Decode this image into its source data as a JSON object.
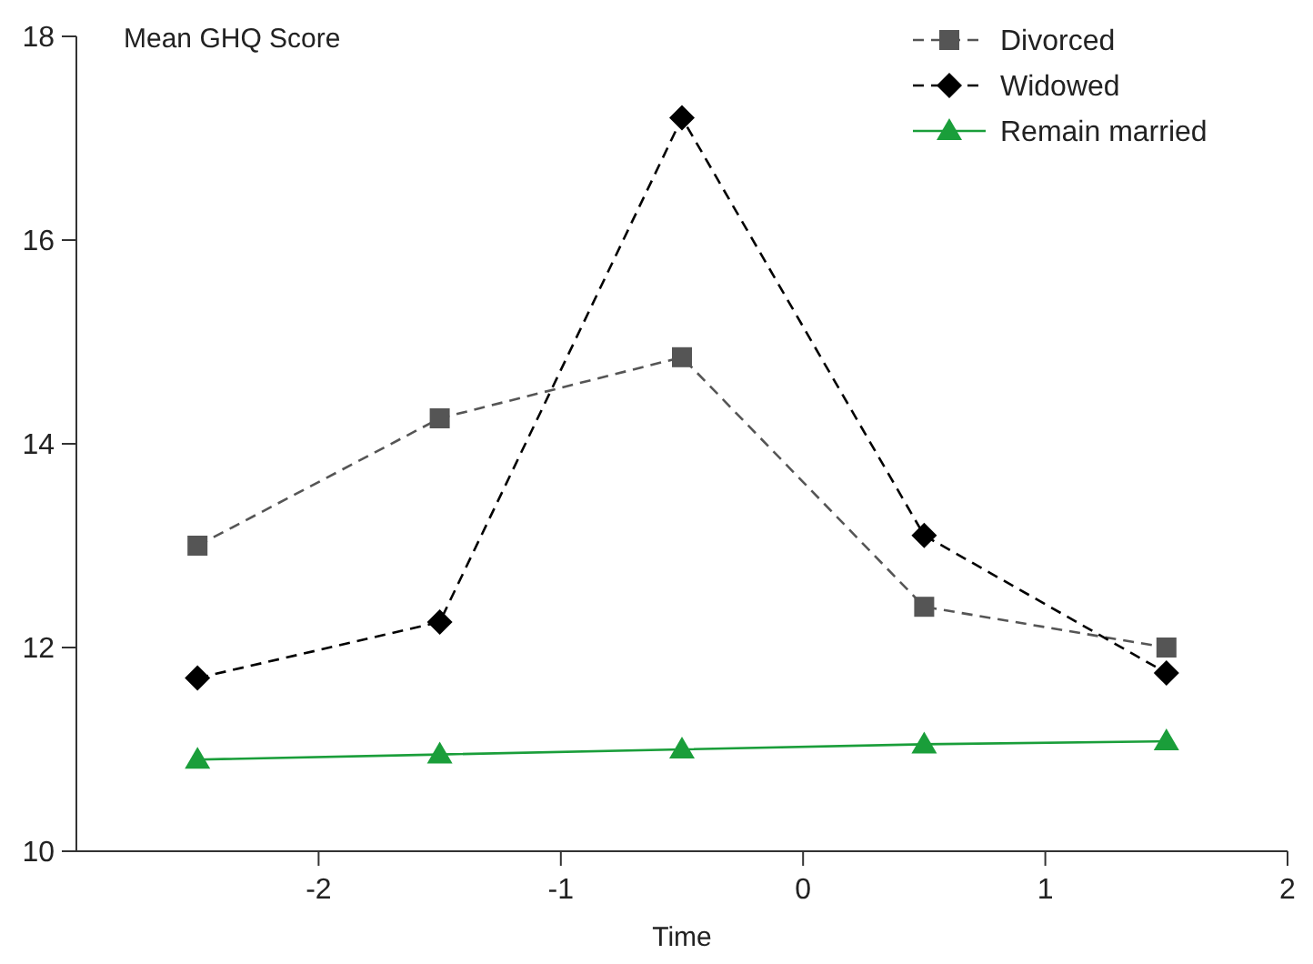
{
  "chart_data": {
    "type": "line",
    "xlabel": "Time",
    "ylabel": "Mean GHQ Score",
    "x": [
      -2.5,
      -1.5,
      -0.5,
      0.5,
      1.5
    ],
    "xlim": [
      -3,
      2
    ],
    "xticks": [
      -2,
      -1,
      0,
      1,
      2
    ],
    "ylim": [
      10,
      18
    ],
    "yticks": [
      10,
      12,
      14,
      16,
      18
    ],
    "grid": false,
    "legend": "top right",
    "series": [
      {
        "name": "Divorced",
        "color": "#555555",
        "marker": "square",
        "line_style": "dashed",
        "values": [
          13.0,
          14.25,
          14.85,
          12.4,
          12.0
        ]
      },
      {
        "name": "Widowed",
        "color": "#000000",
        "marker": "diamond",
        "line_style": "dashed",
        "values": [
          11.7,
          12.25,
          17.2,
          13.1,
          11.75
        ]
      },
      {
        "name": "Remain married",
        "color": "#1a9e3a",
        "marker": "triangle",
        "line_style": "solid",
        "values": [
          10.9,
          10.95,
          11.0,
          11.05,
          11.08
        ]
      }
    ]
  }
}
